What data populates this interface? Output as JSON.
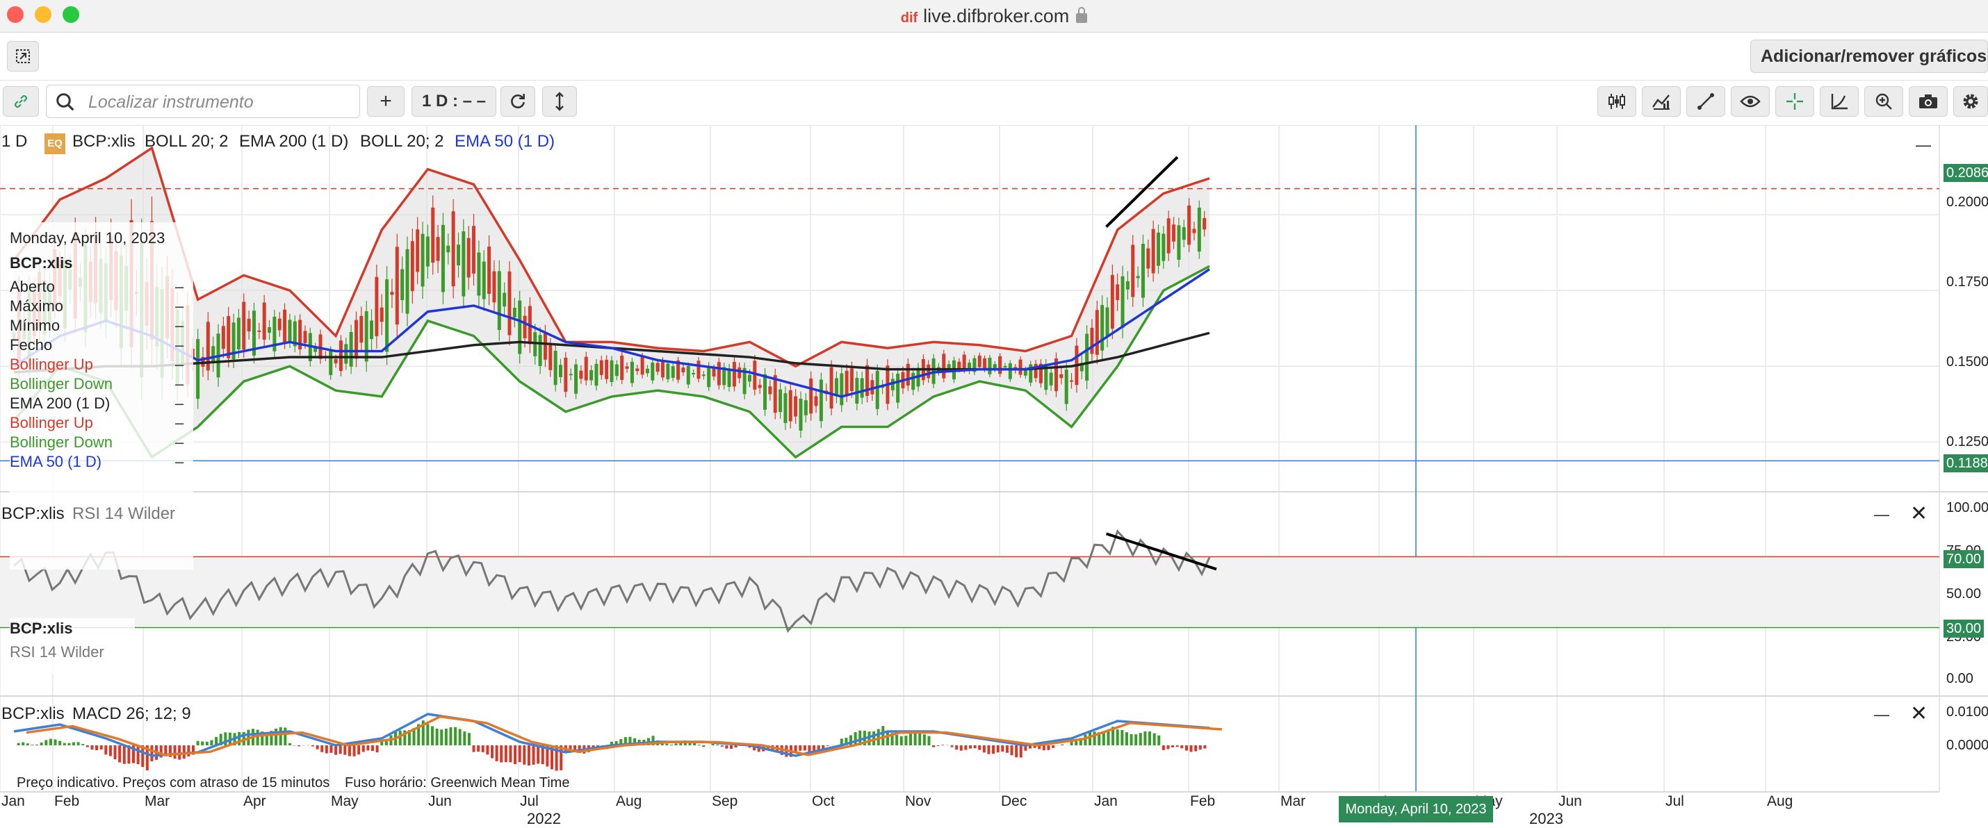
{
  "window": {
    "url": "live.difbroker.com"
  },
  "toolbar_top": {
    "add_remove_label": "Adicionar/remover gráficos"
  },
  "toolbar": {
    "search_placeholder": "Localizar instrumento",
    "add_label": "+",
    "interval_label": "1 D : – –"
  },
  "main_chart": {
    "interval": "1 D",
    "eq_badge": "EQ",
    "symbol": "BCP:xlis",
    "indicators": [
      {
        "text": "BOLL 20; 2",
        "color": "#222222"
      },
      {
        "text": "EMA 200 (1 D)",
        "color": "#222222"
      },
      {
        "text": "BOLL 20; 2",
        "color": "#222222"
      },
      {
        "text": "EMA 50 (1 D)",
        "color": "#1f35d6"
      }
    ],
    "minimize_symbol": "—"
  },
  "tooltip": {
    "date": "Monday, April 10, 2023",
    "symbol": "BCP:xlis",
    "rows": [
      {
        "label": "Aberto",
        "value": "–",
        "color": "#222222"
      },
      {
        "label": "Máximo",
        "value": "–",
        "color": "#222222"
      },
      {
        "label": "Mínimo",
        "value": "–",
        "color": "#222222"
      },
      {
        "label": "Fecho",
        "value": "–",
        "color": "#222222"
      },
      {
        "label": "Bollinger Up",
        "value": "–",
        "color": "#d43a2a"
      },
      {
        "label": "Bollinger Down",
        "value": "–",
        "color": "#3a9a2a"
      },
      {
        "label": "EMA 200 (1 D)",
        "value": "–",
        "color": "#222222"
      },
      {
        "label": "Bollinger Up",
        "value": "–",
        "color": "#d43a2a"
      },
      {
        "label": "Bollinger Down",
        "value": "–",
        "color": "#3a9a2a"
      },
      {
        "label": "EMA 50 (1 D)",
        "value": "–",
        "color": "#1f35d6"
      }
    ]
  },
  "price_axis": {
    "ticks": [
      "0.2000",
      "0.1750",
      "0.1500",
      "0.1250"
    ],
    "current_price": "0.2086",
    "crosshair_price": "0.1188"
  },
  "rsi_panel": {
    "symbol": "BCP:xlis",
    "indicator": "RSI 14 Wilder",
    "ticks": [
      "100.00",
      "75.00",
      "50.00",
      "25.00",
      "0.00"
    ],
    "upper_level": "70.00",
    "lower_level": "30.00",
    "legend_symbol": "BCP:xlis",
    "legend_indicator": "RSI 14 Wilder"
  },
  "macd_panel": {
    "symbol": "BCP:xlis",
    "indicator": "MACD 26; 12; 9",
    "ticks": [
      "0.0100",
      "0.0000"
    ]
  },
  "footer": {
    "disclaimer": "Preço indicativo. Preços com atraso de 15 minutos",
    "timezone": "Fuso horário: Greenwich Mean Time"
  },
  "time_axis": {
    "months": [
      "Jan",
      "Feb",
      "Mar",
      "Apr",
      "May",
      "Jun",
      "Jul",
      "Aug",
      "Sep",
      "Oct",
      "Nov",
      "Dec",
      "Jan",
      "Feb",
      "Mar",
      "Apr",
      "May",
      "Jun",
      "Jul",
      "Aug"
    ],
    "years": [
      {
        "label": "2022",
        "month_index": 6
      },
      {
        "label": "2023",
        "month_index": 16
      }
    ],
    "crosshair_date": "Monday, April 10, 2023"
  },
  "colors": {
    "bollinger_up": "#d43a2a",
    "bollinger_down": "#3a9a2a",
    "ema50": "#1f35d6",
    "ema200": "#222222",
    "candle_up": "#3a9a2a",
    "candle_down": "#d43a2a",
    "level_badge": "#2e8b57",
    "crosshair": "#2b7bd6"
  },
  "chart_data": {
    "type": "line",
    "symbol": "BCP:xlis",
    "x_dates": [
      "2022-01-15",
      "2022-02-01",
      "2022-02-15",
      "2022-03-01",
      "2022-03-15",
      "2022-04-01",
      "2022-04-15",
      "2022-05-01",
      "2022-05-15",
      "2022-06-01",
      "2022-06-15",
      "2022-07-01",
      "2022-07-15",
      "2022-08-01",
      "2022-08-15",
      "2022-09-01",
      "2022-09-15",
      "2022-10-01",
      "2022-10-15",
      "2022-11-01",
      "2022-11-15",
      "2022-12-01",
      "2022-12-15",
      "2023-01-01",
      "2023-01-15",
      "2023-02-01",
      "2023-02-15"
    ],
    "series": [
      {
        "name": "Bollinger Up",
        "values": [
          0.185,
          0.205,
          0.212,
          0.222,
          0.172,
          0.18,
          0.175,
          0.16,
          0.195,
          0.215,
          0.21,
          0.185,
          0.158,
          0.158,
          0.156,
          0.155,
          0.158,
          0.15,
          0.158,
          0.156,
          0.158,
          0.157,
          0.155,
          0.16,
          0.195,
          0.207,
          0.212
        ]
      },
      {
        "name": "Bollinger Down",
        "values": [
          0.132,
          0.15,
          0.145,
          0.12,
          0.13,
          0.145,
          0.15,
          0.142,
          0.14,
          0.165,
          0.16,
          0.145,
          0.135,
          0.14,
          0.142,
          0.14,
          0.135,
          0.12,
          0.13,
          0.13,
          0.14,
          0.145,
          0.142,
          0.13,
          0.15,
          0.175,
          0.183
        ]
      },
      {
        "name": "EMA 200 (1 D)",
        "values": [
          0.148,
          0.149,
          0.15,
          0.15,
          0.151,
          0.152,
          0.153,
          0.153,
          0.153,
          0.155,
          0.157,
          0.158,
          0.157,
          0.156,
          0.155,
          0.154,
          0.153,
          0.151,
          0.15,
          0.149,
          0.149,
          0.149,
          0.149,
          0.15,
          0.153,
          0.157,
          0.161
        ]
      },
      {
        "name": "EMA 50 (1 D)",
        "values": [
          0.15,
          0.16,
          0.165,
          0.16,
          0.152,
          0.155,
          0.158,
          0.155,
          0.155,
          0.168,
          0.17,
          0.165,
          0.158,
          0.156,
          0.152,
          0.15,
          0.148,
          0.144,
          0.14,
          0.144,
          0.148,
          0.149,
          0.149,
          0.152,
          0.162,
          0.172,
          0.182
        ]
      }
    ],
    "rsi": {
      "name": "RSI 14 Wilder",
      "values": [
        65,
        55,
        72,
        45,
        40,
        50,
        55,
        60,
        45,
        70,
        65,
        50,
        45,
        50,
        52,
        48,
        55,
        30,
        55,
        60,
        55,
        50,
        48,
        65,
        80,
        70,
        65
      ],
      "levels": [
        70,
        30
      ]
    },
    "macd": {
      "name": "MACD 26; 12; 9",
      "macd_values": [
        0.004,
        0.006,
        0.002,
        -0.003,
        -0.002,
        0.003,
        0.004,
        0.0,
        0.002,
        0.009,
        0.007,
        0.001,
        -0.002,
        0.0,
        0.001,
        0.001,
        0.0,
        -0.003,
        0.0,
        0.004,
        0.004,
        0.002,
        0.0,
        0.002,
        0.007,
        0.006,
        0.005
      ]
    },
    "ylim": [
      0.115,
      0.225
    ]
  }
}
